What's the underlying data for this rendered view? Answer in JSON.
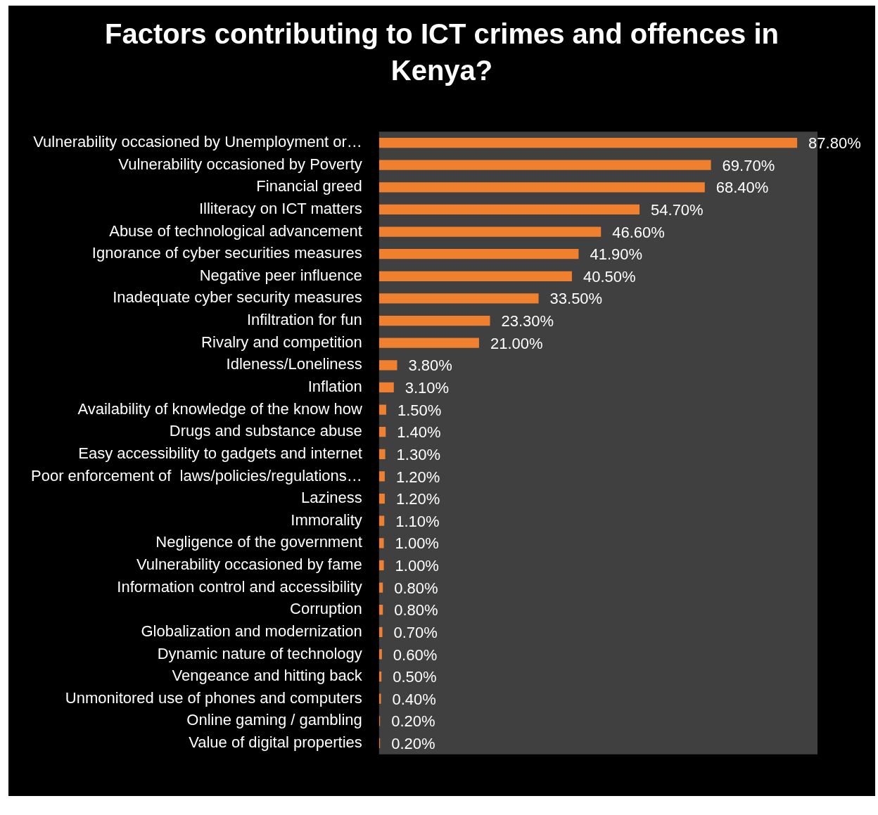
{
  "chart_data": {
    "type": "bar",
    "orientation": "horizontal",
    "title": "Factors contributing to ICT crimes and offences in Kenya?",
    "categories": [
      "Vulnerability occasioned by Unemployment or…",
      "Vulnerability occasioned by Poverty",
      "Financial greed",
      "Illiteracy on ICT matters",
      "Abuse of technological advancement",
      "Ignorance of cyber securities measures",
      "Negative peer influence",
      "Inadequate cyber security measures",
      "Infiltration for fun",
      "Rivalry and competition",
      "Idleness/Loneliness",
      "Inflation",
      "Availability of knowledge of the know how",
      "Drugs and substance abuse",
      "Easy accessibility to gadgets and internet",
      "Poor enforcement of  laws/policies/regulations…",
      "Laziness",
      "Immorality",
      "Negligence of the government",
      "Vulnerability occasioned by fame",
      "Information control and accessibility",
      "Corruption",
      "Globalization and modernization",
      "Dynamic nature of technology",
      "Vengeance and hitting back",
      "Unmonitored use of phones and computers",
      "Online gaming / gambling",
      "Value of digital properties"
    ],
    "values": [
      87.8,
      69.7,
      68.4,
      54.7,
      46.6,
      41.9,
      40.5,
      33.5,
      23.3,
      21.0,
      3.8,
      3.1,
      1.5,
      1.4,
      1.3,
      1.2,
      1.2,
      1.1,
      1.0,
      1.0,
      0.8,
      0.8,
      0.7,
      0.6,
      0.5,
      0.4,
      0.2,
      0.2
    ],
    "value_labels": [
      "87.80%",
      "69.70%",
      "68.40%",
      "54.70%",
      "46.60%",
      "41.90%",
      "40.50%",
      "33.50%",
      "23.30%",
      "21.00%",
      "3.80%",
      "3.10%",
      "1.50%",
      "1.40%",
      "1.30%",
      "1.20%",
      "1.20%",
      "1.10%",
      "1.00%",
      "1.00%",
      "0.80%",
      "0.80%",
      "0.70%",
      "0.60%",
      "0.50%",
      "0.40%",
      "0.20%",
      "0.20%"
    ],
    "color": "#f07f2e",
    "grid": false,
    "legend": false,
    "tick_labels": "y"
  }
}
